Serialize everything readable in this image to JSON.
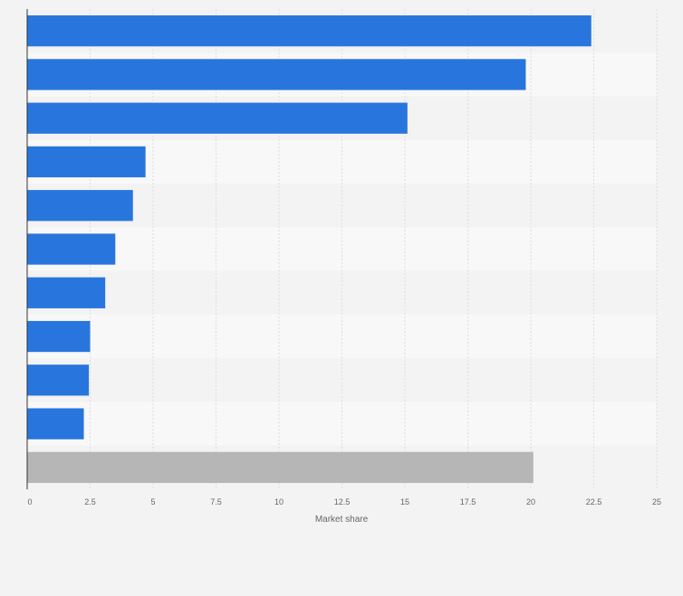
{
  "chart_data": {
    "type": "bar",
    "orientation": "horizontal",
    "title": "",
    "xlabel": "Market share",
    "ylabel": "",
    "xlim": [
      0,
      25
    ],
    "ticks": [
      "0",
      "2.5",
      "5",
      "7.5",
      "10",
      "12.5",
      "15",
      "17.5",
      "20",
      "22.5",
      "25"
    ],
    "categories": [
      "",
      "",
      "",
      "",
      "",
      "",
      "",
      "",
      "",
      "",
      ""
    ],
    "values": [
      22.4,
      19.8,
      15.1,
      4.7,
      4.2,
      3.5,
      3.1,
      2.5,
      2.45,
      2.25,
      20.1
    ],
    "colors": [
      "#2876dd",
      "#2876dd",
      "#2876dd",
      "#2876dd",
      "#2876dd",
      "#2876dd",
      "#2876dd",
      "#2876dd",
      "#2876dd",
      "#2876dd",
      "#b6b6b6"
    ],
    "grid": true
  },
  "colors": {
    "background": "#f3f3f3",
    "band_light": "#f8f8f8",
    "band_dark": "#f3f3f3",
    "gridline": "#dddddd",
    "axis": "#333333"
  }
}
